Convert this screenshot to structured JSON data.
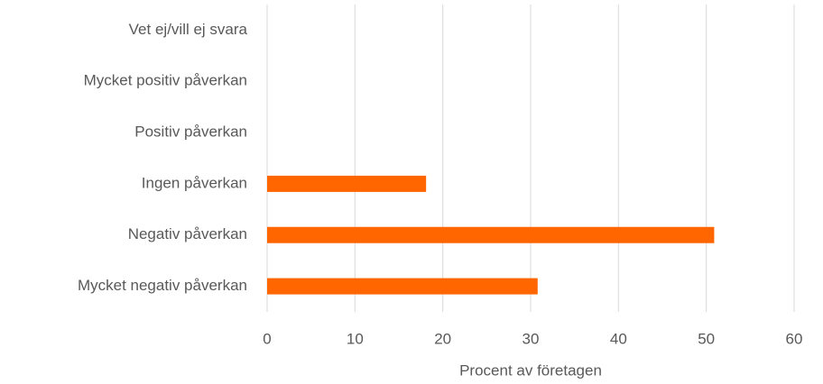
{
  "chart_data": {
    "type": "hbar",
    "categories": [
      "Vet ej/vill ej svara",
      "Mycket positiv påverkan",
      "Positiv påverkan",
      "Ingen påverkan",
      "Negativ påverkan",
      "Mycket negativ påverkan"
    ],
    "values": [
      0,
      0,
      0,
      18.1,
      50.9,
      30.8
    ],
    "color": "#ff6600",
    "xlabel": "Procent av företagen",
    "xlim": [
      0,
      60
    ],
    "xticks": [
      0,
      10,
      20,
      30,
      40,
      50,
      60
    ],
    "grid": true
  }
}
